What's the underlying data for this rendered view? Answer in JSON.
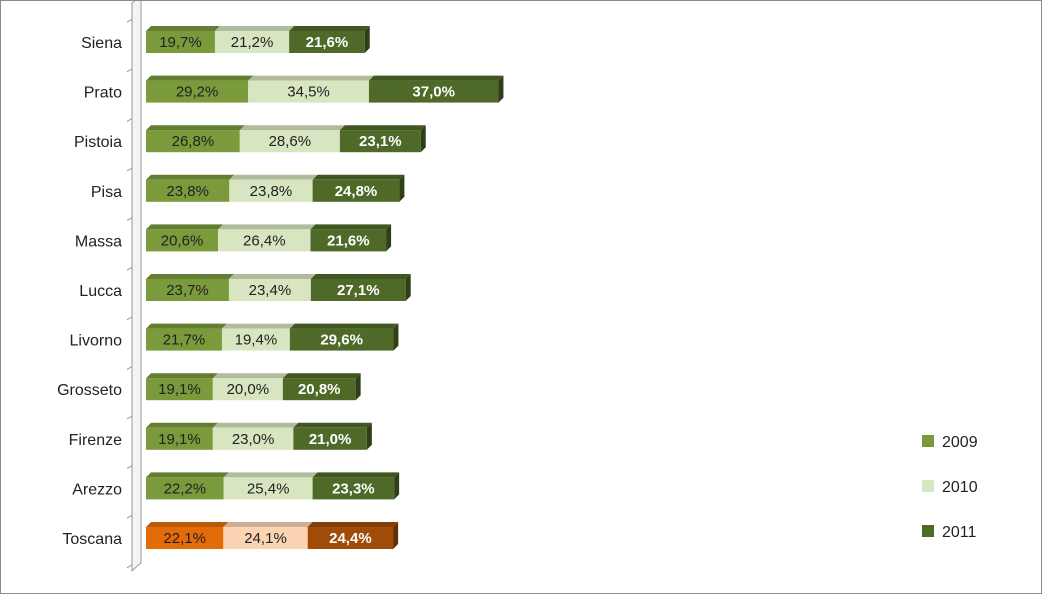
{
  "chart_data": {
    "type": "bar",
    "orientation": "horizontal",
    "stacked": true,
    "three_d": true,
    "categories": [
      "Siena",
      "Prato",
      "Pistoia",
      "Pisa",
      "Massa",
      "Lucca",
      "Livorno",
      "Grosseto",
      "Firenze",
      "Arezzo",
      "Toscana"
    ],
    "series": [
      {
        "name": "2009",
        "values": [
          19.7,
          29.2,
          26.8,
          23.8,
          20.6,
          23.7,
          21.7,
          19.1,
          19.1,
          22.2,
          22.1
        ],
        "labels": [
          "19,7%",
          "29,2%",
          "26,8%",
          "23,8%",
          "20,6%",
          "23,7%",
          "21,7%",
          "19,1%",
          "19,1%",
          "22,2%",
          "22,1%"
        ]
      },
      {
        "name": "2010",
        "values": [
          21.2,
          34.5,
          28.6,
          23.8,
          26.4,
          23.4,
          19.4,
          20.0,
          23.0,
          25.4,
          24.1
        ],
        "labels": [
          "21,2%",
          "34,5%",
          "28,6%",
          "23,8%",
          "26,4%",
          "23,4%",
          "19,4%",
          "20,0%",
          "23,0%",
          "25,4%",
          "24,1%"
        ]
      },
      {
        "name": "2011",
        "values": [
          21.6,
          37.0,
          23.1,
          24.8,
          21.6,
          27.1,
          29.6,
          20.8,
          21.0,
          23.3,
          24.4
        ],
        "labels": [
          "21,6%",
          "37,0%",
          "23,1%",
          "24,8%",
          "21,6%",
          "27,1%",
          "29,6%",
          "20,8%",
          "21,0%",
          "23,3%",
          "24,4%"
        ]
      }
    ],
    "colors": {
      "default": [
        "#7a9a3c",
        "#d7e5c0",
        "#4f6a28"
      ],
      "Toscana": [
        "#e36c09",
        "#fbd4b4",
        "#a04c08"
      ]
    },
    "value_label_colors": [
      "#222222",
      "#222222",
      "#ffffff"
    ],
    "value_label_bold": [
      false,
      false,
      true
    ],
    "legend": {
      "position": "right",
      "entries": [
        "2009",
        "2010",
        "2011"
      ]
    },
    "grid": false,
    "x_axis_visible": false
  }
}
